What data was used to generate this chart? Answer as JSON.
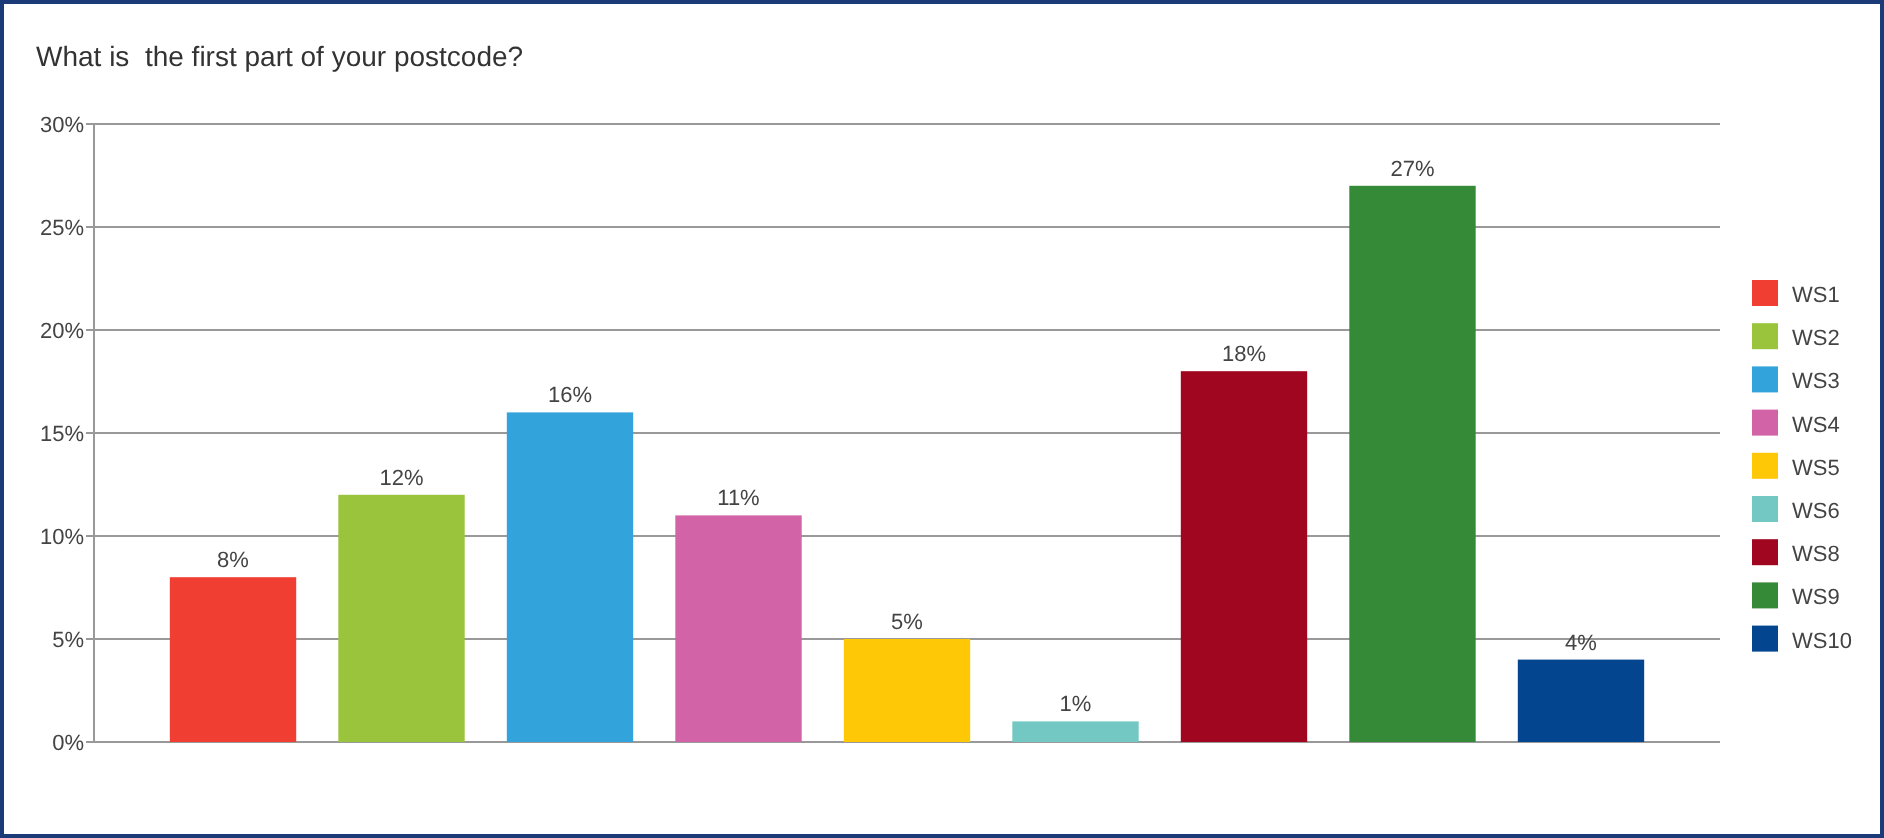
{
  "chart_data": {
    "type": "bar",
    "title": "What is  the first part of your postcode?",
    "categories": [
      null,
      null,
      null,
      null,
      null,
      null,
      null,
      null,
      null
    ],
    "series": [
      {
        "name": "WS1",
        "color": "#f03e32",
        "values": [
          8,
          null,
          null,
          null,
          null,
          null,
          null,
          null,
          null
        ],
        "value_labels": [
          "8%",
          null,
          null,
          null,
          null,
          null,
          null,
          null,
          null
        ]
      },
      {
        "name": "WS2",
        "color": "#9ac43c",
        "values": [
          null,
          12,
          null,
          null,
          null,
          null,
          null,
          null,
          null
        ],
        "value_labels": [
          null,
          "12%",
          null,
          null,
          null,
          null,
          null,
          null,
          null
        ]
      },
      {
        "name": "WS3",
        "color": "#33a3dc",
        "values": [
          null,
          null,
          16,
          null,
          null,
          null,
          null,
          null,
          null
        ],
        "value_labels": [
          null,
          null,
          "16%",
          null,
          null,
          null,
          null,
          null,
          null
        ]
      },
      {
        "name": "WS4",
        "color": "#d163a6",
        "values": [
          null,
          null,
          null,
          11,
          null,
          null,
          null,
          null,
          null
        ],
        "value_labels": [
          null,
          null,
          null,
          "11%",
          null,
          null,
          null,
          null,
          null
        ]
      },
      {
        "name": "WS5",
        "color": "#fec806",
        "values": [
          null,
          null,
          null,
          null,
          5,
          null,
          null,
          null,
          null
        ],
        "value_labels": [
          null,
          null,
          null,
          null,
          "5%",
          null,
          null,
          null,
          null
        ]
      },
      {
        "name": "WS6",
        "color": "#73c8c3",
        "values": [
          null,
          null,
          null,
          null,
          null,
          1,
          null,
          null,
          null
        ],
        "value_labels": [
          null,
          null,
          null,
          null,
          null,
          "1%",
          null,
          null,
          null
        ]
      },
      {
        "name": "WS8",
        "color": "#a0061f",
        "values": [
          null,
          null,
          null,
          null,
          null,
          null,
          18,
          null,
          null
        ],
        "value_labels": [
          null,
          null,
          null,
          null,
          null,
          null,
          "18%",
          null,
          null
        ]
      },
      {
        "name": "WS9",
        "color": "#358a37",
        "values": [
          null,
          null,
          null,
          null,
          null,
          null,
          null,
          27,
          null
        ],
        "value_labels": [
          null,
          null,
          null,
          null,
          null,
          null,
          null,
          "27%",
          null
        ]
      },
      {
        "name": "WS10",
        "color": "#03458f",
        "values": [
          null,
          null,
          null,
          null,
          null,
          null,
          null,
          null,
          4
        ],
        "value_labels": [
          null,
          null,
          null,
          null,
          null,
          null,
          null,
          null,
          "4%"
        ]
      }
    ],
    "ylim": [
      0,
      30
    ],
    "yticks": [
      {
        "value": 0,
        "label": "0%"
      },
      {
        "value": 5,
        "label": "5%"
      },
      {
        "value": 10,
        "label": "10%"
      },
      {
        "value": 15,
        "label": "15%"
      },
      {
        "value": 20,
        "label": "20%"
      },
      {
        "value": 25,
        "label": "25%"
      },
      {
        "value": 30,
        "label": "30%"
      }
    ],
    "grid": "y",
    "legend": "right",
    "tick_labels": "y"
  }
}
